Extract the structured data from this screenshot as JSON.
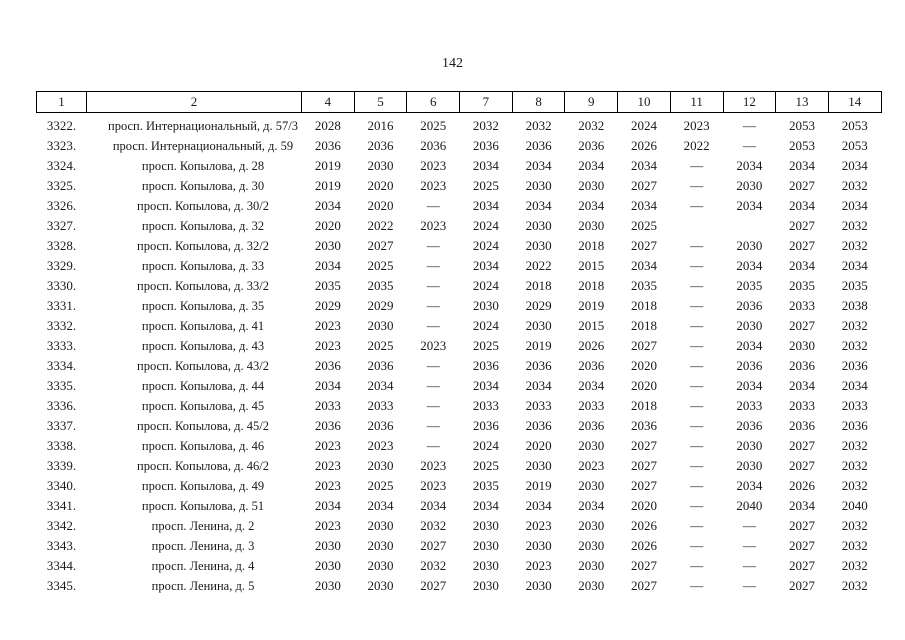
{
  "page": {
    "number": "142"
  },
  "table": {
    "headers": [
      "1",
      "2",
      "4",
      "5",
      "6",
      "7",
      "8",
      "9",
      "10",
      "11",
      "12",
      "13",
      "14"
    ],
    "rows": [
      {
        "num": "3322.",
        "address": "просп. Интернациональный, д. 57/3",
        "values": [
          "2028",
          "2016",
          "2025",
          "2032",
          "2032",
          "2032",
          "2024",
          "2023",
          "—",
          "2053",
          "2053"
        ]
      },
      {
        "num": "3323.",
        "address": "просп. Интернациональный, д. 59",
        "values": [
          "2036",
          "2036",
          "2036",
          "2036",
          "2036",
          "2036",
          "2026",
          "2022",
          "—",
          "2053",
          "2053"
        ]
      },
      {
        "num": "3324.",
        "address": "просп. Копылова, д. 28",
        "values": [
          "2019",
          "2030",
          "2023",
          "2034",
          "2034",
          "2034",
          "2034",
          "—",
          "2034",
          "2034",
          "2034"
        ]
      },
      {
        "num": "3325.",
        "address": "просп. Копылова, д. 30",
        "values": [
          "2019",
          "2020",
          "2023",
          "2025",
          "2030",
          "2030",
          "2027",
          "—",
          "2030",
          "2027",
          "2032"
        ]
      },
      {
        "num": "3326.",
        "address": "просп. Копылова, д. 30/2",
        "values": [
          "2034",
          "2020",
          "—",
          "2034",
          "2034",
          "2034",
          "2034",
          "—",
          "2034",
          "2034",
          "2034"
        ]
      },
      {
        "num": "3327.",
        "address": "просп. Копылова, д. 32",
        "values": [
          "2020",
          "2022",
          "2023",
          "2024",
          "2030",
          "2030",
          "2025",
          "",
          "",
          "2027",
          "2032"
        ]
      },
      {
        "num": "3328.",
        "address": "просп. Копылова, д. 32/2",
        "values": [
          "2030",
          "2027",
          "—",
          "2024",
          "2030",
          "2018",
          "2027",
          "—",
          "2030",
          "2027",
          "2032"
        ]
      },
      {
        "num": "3329.",
        "address": "просп. Копылова, д. 33",
        "values": [
          "2034",
          "2025",
          "—",
          "2034",
          "2022",
          "2015",
          "2034",
          "—",
          "2034",
          "2034",
          "2034"
        ]
      },
      {
        "num": "3330.",
        "address": "просп. Копылова, д. 33/2",
        "values": [
          "2035",
          "2035",
          "—",
          "2024",
          "2018",
          "2018",
          "2035",
          "—",
          "2035",
          "2035",
          "2035"
        ]
      },
      {
        "num": "3331.",
        "address": "просп. Копылова, д. 35",
        "values": [
          "2029",
          "2029",
          "—",
          "2030",
          "2029",
          "2019",
          "2018",
          "—",
          "2036",
          "2033",
          "2038"
        ]
      },
      {
        "num": "3332.",
        "address": "просп. Копылова, д. 41",
        "values": [
          "2023",
          "2030",
          "—",
          "2024",
          "2030",
          "2015",
          "2018",
          "—",
          "2030",
          "2027",
          "2032"
        ]
      },
      {
        "num": "3333.",
        "address": "просп. Копылова, д. 43",
        "values": [
          "2023",
          "2025",
          "2023",
          "2025",
          "2019",
          "2026",
          "2027",
          "—",
          "2034",
          "2030",
          "2032"
        ]
      },
      {
        "num": "3334.",
        "address": "просп. Копылова, д. 43/2",
        "values": [
          "2036",
          "2036",
          "—",
          "2036",
          "2036",
          "2036",
          "2020",
          "—",
          "2036",
          "2036",
          "2036"
        ]
      },
      {
        "num": "3335.",
        "address": "просп. Копылова, д. 44",
        "values": [
          "2034",
          "2034",
          "—",
          "2034",
          "2034",
          "2034",
          "2020",
          "—",
          "2034",
          "2034",
          "2034"
        ]
      },
      {
        "num": "3336.",
        "address": "просп. Копылова, д. 45",
        "values": [
          "2033",
          "2033",
          "—",
          "2033",
          "2033",
          "2033",
          "2018",
          "—",
          "2033",
          "2033",
          "2033"
        ]
      },
      {
        "num": "3337.",
        "address": "просп. Копылова, д. 45/2",
        "values": [
          "2036",
          "2036",
          "—",
          "2036",
          "2036",
          "2036",
          "2036",
          "—",
          "2036",
          "2036",
          "2036"
        ]
      },
      {
        "num": "3338.",
        "address": "просп. Копылова, д. 46",
        "values": [
          "2023",
          "2023",
          "—",
          "2024",
          "2020",
          "2030",
          "2027",
          "—",
          "2030",
          "2027",
          "2032"
        ]
      },
      {
        "num": "3339.",
        "address": "просп. Копылова, д. 46/2",
        "values": [
          "2023",
          "2030",
          "2023",
          "2025",
          "2030",
          "2023",
          "2027",
          "—",
          "2030",
          "2027",
          "2032"
        ]
      },
      {
        "num": "3340.",
        "address": "просп. Копылова, д. 49",
        "values": [
          "2023",
          "2025",
          "2023",
          "2035",
          "2019",
          "2030",
          "2027",
          "—",
          "2034",
          "2026",
          "2032"
        ]
      },
      {
        "num": "3341.",
        "address": "просп. Копылова, д. 51",
        "values": [
          "2034",
          "2034",
          "2034",
          "2034",
          "2034",
          "2034",
          "2020",
          "—",
          "2040",
          "2034",
          "2040"
        ]
      },
      {
        "num": "3342.",
        "address": "просп. Ленина, д. 2",
        "values": [
          "2023",
          "2030",
          "2032",
          "2030",
          "2023",
          "2030",
          "2026",
          "—",
          "—",
          "2027",
          "2032"
        ]
      },
      {
        "num": "3343.",
        "address": "просп. Ленина, д. 3",
        "values": [
          "2030",
          "2030",
          "2027",
          "2030",
          "2030",
          "2030",
          "2026",
          "—",
          "—",
          "2027",
          "2032"
        ]
      },
      {
        "num": "3344.",
        "address": "просп. Ленина, д. 4",
        "values": [
          "2030",
          "2030",
          "2032",
          "2030",
          "2023",
          "2030",
          "2027",
          "—",
          "—",
          "2027",
          "2032"
        ]
      },
      {
        "num": "3345.",
        "address": "просп. Ленина, д. 5",
        "values": [
          "2030",
          "2030",
          "2027",
          "2030",
          "2030",
          "2030",
          "2027",
          "—",
          "—",
          "2027",
          "2032"
        ]
      }
    ]
  }
}
